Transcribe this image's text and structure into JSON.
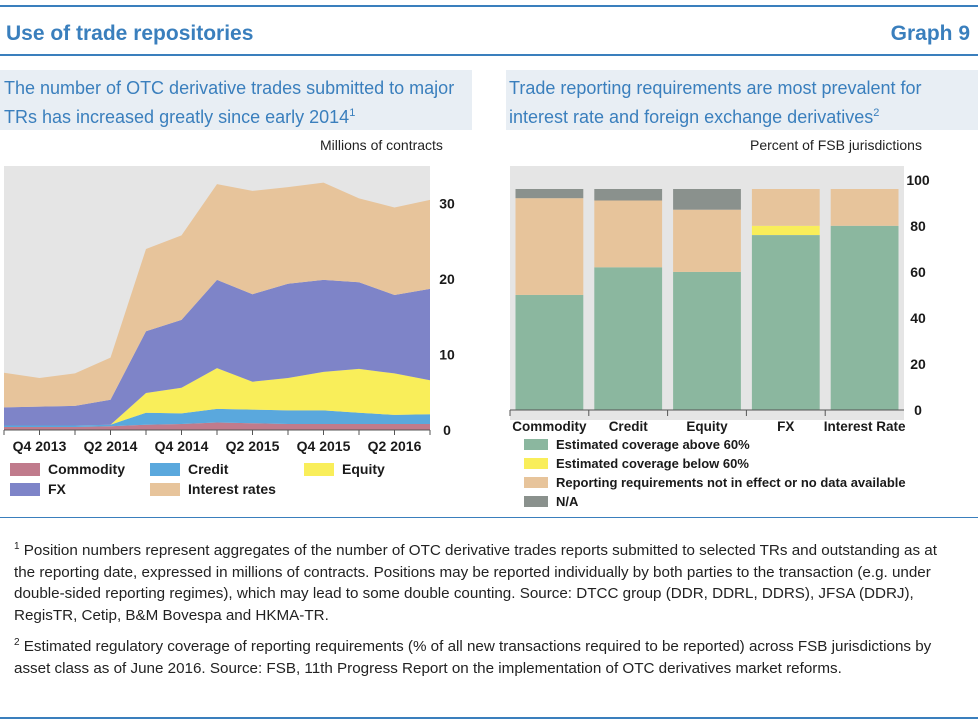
{
  "header": {
    "title": "Use of trade repositories",
    "graph_label": "Graph 9"
  },
  "panels": [
    {
      "title": "The number of OTC derivative trades submitted to major TRs has increased greatly since early 2014",
      "footnote_mark": "1",
      "unit": "Millions of contracts"
    },
    {
      "title": "Trade reporting requirements are most prevalent for interest rate and foreign exchange derivatives",
      "footnote_mark": "2",
      "unit": "Percent of FSB jurisdictions"
    }
  ],
  "colors": {
    "commodity": "#c07b8c",
    "credit": "#5aa8dd",
    "equity": "#f9ee5a",
    "fx": "#7e84c8",
    "interest_rates": "#e7c49b",
    "green": "#8bb79f",
    "yellow": "#f9ee5a",
    "tan": "#e7c49b",
    "grey": "#8a918d",
    "accent": "#3a7fbd"
  },
  "chart_data": [
    {
      "type": "area",
      "stacked": true,
      "title": "The number of OTC derivative trades submitted to major TRs has increased greatly since early 2014",
      "ylabel": "Millions of contracts",
      "x": [
        "Q3 2013",
        "Q4 2013",
        "Q1 2014",
        "Q2 2014",
        "Q3 2014",
        "Q4 2014",
        "Q1 2015",
        "Q2 2015",
        "Q3 2015",
        "Q4 2015",
        "Q1 2016",
        "Q2 2016",
        "Q3 2016"
      ],
      "xtick_labels": [
        "Q4 2013",
        "Q2 2014",
        "Q4 2014",
        "Q2 2015",
        "Q4 2015",
        "Q2 2016"
      ],
      "yticks": [
        "0",
        "10",
        "20",
        "30"
      ],
      "ylim": [
        0,
        35
      ],
      "axis_side": "right",
      "series": [
        {
          "name": "Commodity",
          "key": "commodity",
          "values": [
            0.4,
            0.4,
            0.4,
            0.5,
            0.7,
            0.8,
            1.0,
            0.9,
            0.8,
            0.8,
            0.8,
            0.8,
            0.8
          ]
        },
        {
          "name": "Credit",
          "key": "credit",
          "values": [
            0.2,
            0.2,
            0.2,
            0.2,
            1.6,
            1.4,
            1.8,
            1.8,
            1.8,
            1.8,
            1.5,
            1.2,
            1.3
          ]
        },
        {
          "name": "Equity",
          "key": "equity",
          "values": [
            0.0,
            0.0,
            0.0,
            0.0,
            2.6,
            3.4,
            5.4,
            3.7,
            4.3,
            5.1,
            5.8,
            5.5,
            4.5
          ]
        },
        {
          "name": "FX",
          "key": "fx",
          "values": [
            2.4,
            2.5,
            2.6,
            3.3,
            8.2,
            9.0,
            11.7,
            11.6,
            12.5,
            12.2,
            11.5,
            10.4,
            12.1
          ]
        },
        {
          "name": "Interest rates",
          "key": "interest_rates",
          "values": [
            4.6,
            3.8,
            4.3,
            5.6,
            10.9,
            11.2,
            12.7,
            13.7,
            12.8,
            12.9,
            11.1,
            11.6,
            11.8
          ]
        }
      ],
      "legend": [
        "Commodity",
        "Credit",
        "Equity",
        "FX",
        "Interest rates"
      ]
    },
    {
      "type": "bar",
      "stacked": true,
      "title": "Trade reporting requirements are most prevalent for interest rate and foreign exchange derivatives",
      "ylabel": "Percent of FSB jurisdictions",
      "categories": [
        "Commodity",
        "Credit",
        "Equity",
        "FX",
        "Interest Rate"
      ],
      "yticks": [
        "0",
        "20",
        "40",
        "60",
        "80",
        "100"
      ],
      "ylim": [
        0,
        106
      ],
      "axis_side": "right",
      "series": [
        {
          "name": "Estimated coverage above 60%",
          "key": "green",
          "values": [
            50,
            62,
            60,
            76,
            80
          ]
        },
        {
          "name": "Estimated coverage below 60%",
          "key": "yellow",
          "values": [
            0,
            0,
            0,
            4,
            0
          ]
        },
        {
          "name": "Reporting requirements not in effect or no data available",
          "key": "tan",
          "values": [
            42,
            29,
            27,
            16,
            16
          ]
        },
        {
          "name": "N/A",
          "key": "grey",
          "values": [
            4,
            5,
            9,
            0,
            0
          ]
        }
      ],
      "legend": [
        "Estimated coverage above 60%",
        "Estimated coverage below 60%",
        "Reporting requirements not in effect or no data available",
        "N/A"
      ]
    }
  ],
  "footnotes": [
    {
      "mark": "1",
      "text": "Position numbers represent aggregates of the number of OTC derivative trades reports submitted to selected TRs and outstanding as at the reporting date, expressed in millions of contracts. Positions may be reported individually by both parties to the transaction (e.g. under double-sided reporting regimes), which may lead to some double counting. Source: DTCC group (DDR, DDRL, DDRS), JFSA (DDRJ), RegisTR, Cetip, B&M Bovespa and HKMA-TR."
    },
    {
      "mark": "2",
      "text": "Estimated regulatory coverage of reporting requirements (% of all new transactions required to be reported) across FSB jurisdictions by asset class as of June 2016. Source: FSB, 11th Progress Report on the implementation of OTC derivatives market reforms."
    }
  ]
}
